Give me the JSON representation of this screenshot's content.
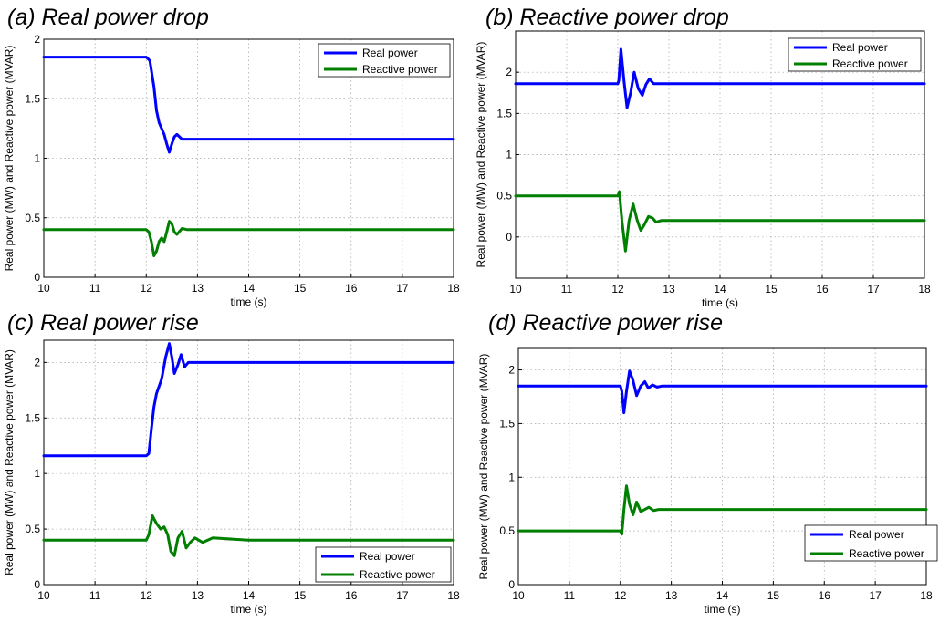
{
  "chart_data": [
    {
      "type": "line",
      "title": "(a) Real power drop",
      "xlabel": "time (s)",
      "ylabel": "Real power (MW) and Reactive power (MVAR)",
      "xlim": [
        10,
        18
      ],
      "ylim": [
        0,
        2
      ],
      "xticks": [
        "10",
        "11",
        "12",
        "13",
        "14",
        "15",
        "16",
        "17",
        "18"
      ],
      "yticks": [
        "0",
        "0.5",
        "1",
        "1.5",
        "2"
      ],
      "grid": true,
      "legend_position": "top-right",
      "series": [
        {
          "name": "Real power",
          "color": "#0000ff",
          "x": [
            10,
            11,
            12,
            12.07,
            12.15,
            12.2,
            12.25,
            12.3,
            12.35,
            12.4,
            12.45,
            12.5,
            12.55,
            12.6,
            12.7,
            12.8,
            13,
            14,
            15,
            16,
            17,
            18
          ],
          "y": [
            1.85,
            1.85,
            1.85,
            1.82,
            1.6,
            1.4,
            1.3,
            1.25,
            1.2,
            1.12,
            1.05,
            1.12,
            1.18,
            1.2,
            1.16,
            1.16,
            1.16,
            1.16,
            1.16,
            1.16,
            1.16,
            1.16
          ]
        },
        {
          "name": "Reactive power",
          "color": "#007f00",
          "x": [
            10,
            11,
            12,
            12.05,
            12.1,
            12.15,
            12.2,
            12.25,
            12.3,
            12.35,
            12.4,
            12.45,
            12.5,
            12.55,
            12.6,
            12.7,
            12.8,
            13,
            14,
            15,
            16,
            17,
            18
          ],
          "y": [
            0.4,
            0.4,
            0.4,
            0.38,
            0.3,
            0.18,
            0.22,
            0.3,
            0.33,
            0.3,
            0.38,
            0.47,
            0.45,
            0.38,
            0.36,
            0.41,
            0.4,
            0.4,
            0.4,
            0.4,
            0.4,
            0.4,
            0.4
          ]
        }
      ]
    },
    {
      "type": "line",
      "title": "(b) Reactive power drop",
      "xlabel": "time (s)",
      "ylabel": "Real power (MW) and Reactive power (MVAR)",
      "xlim": [
        10,
        18
      ],
      "ylim": [
        -0.5,
        2.5
      ],
      "xticks": [
        "10",
        "11",
        "12",
        "13",
        "14",
        "15",
        "16",
        "17",
        "18"
      ],
      "yticks": [
        "0",
        "0.5",
        "1",
        "1.5",
        "2"
      ],
      "grid": true,
      "legend_position": "top-right",
      "series": [
        {
          "name": "Real power",
          "color": "#0000ff",
          "x": [
            10,
            11,
            12,
            12.02,
            12.06,
            12.12,
            12.18,
            12.25,
            12.32,
            12.4,
            12.48,
            12.55,
            12.62,
            12.7,
            12.8,
            13,
            14,
            15,
            16,
            17,
            18
          ],
          "y": [
            1.86,
            1.86,
            1.86,
            1.9,
            2.28,
            1.9,
            1.57,
            1.75,
            2.0,
            1.8,
            1.72,
            1.85,
            1.92,
            1.86,
            1.86,
            1.86,
            1.86,
            1.86,
            1.86,
            1.86,
            1.86
          ]
        },
        {
          "name": "Reactive power",
          "color": "#007f00",
          "x": [
            10,
            11,
            12,
            12.03,
            12.08,
            12.15,
            12.22,
            12.3,
            12.38,
            12.45,
            12.52,
            12.6,
            12.68,
            12.75,
            12.85,
            13,
            14,
            15,
            16,
            17,
            18
          ],
          "y": [
            0.5,
            0.5,
            0.5,
            0.55,
            0.2,
            -0.17,
            0.2,
            0.4,
            0.2,
            0.08,
            0.15,
            0.25,
            0.23,
            0.18,
            0.2,
            0.2,
            0.2,
            0.2,
            0.2,
            0.2,
            0.2
          ]
        }
      ]
    },
    {
      "type": "line",
      "title": "(c) Real power rise",
      "xlabel": "time (s)",
      "ylabel": "Real power (MW) and Reactive power (MVAR)",
      "xlim": [
        10,
        18
      ],
      "ylim": [
        0,
        2.2
      ],
      "xticks": [
        "10",
        "11",
        "12",
        "13",
        "14",
        "15",
        "16",
        "17",
        "18"
      ],
      "yticks": [
        "0",
        "0.5",
        "1",
        "1.5",
        "2"
      ],
      "grid": true,
      "legend_position": "bottom-right",
      "series": [
        {
          "name": "Real power",
          "color": "#0000ff",
          "x": [
            10,
            11,
            12,
            12.05,
            12.1,
            12.15,
            12.2,
            12.3,
            12.38,
            12.45,
            12.5,
            12.55,
            12.62,
            12.68,
            12.75,
            12.82,
            12.9,
            13,
            14,
            15,
            16,
            17,
            18
          ],
          "y": [
            1.16,
            1.16,
            1.16,
            1.18,
            1.4,
            1.6,
            1.72,
            1.85,
            2.05,
            2.17,
            2.05,
            1.9,
            1.98,
            2.07,
            1.96,
            2.0,
            2.0,
            2.0,
            2.0,
            2.0,
            2.0,
            2.0,
            2.0
          ]
        },
        {
          "name": "Reactive power",
          "color": "#007f00",
          "x": [
            10,
            11,
            12,
            12.05,
            12.12,
            12.2,
            12.28,
            12.35,
            12.42,
            12.48,
            12.55,
            12.62,
            12.7,
            12.78,
            12.86,
            12.95,
            13.1,
            13.3,
            14,
            15,
            16,
            17,
            18
          ],
          "y": [
            0.4,
            0.4,
            0.4,
            0.45,
            0.62,
            0.55,
            0.5,
            0.52,
            0.45,
            0.3,
            0.26,
            0.42,
            0.48,
            0.33,
            0.38,
            0.42,
            0.38,
            0.42,
            0.4,
            0.4,
            0.4,
            0.4,
            0.4
          ]
        }
      ]
    },
    {
      "type": "line",
      "title": "(d) Reactive power rise",
      "xlabel": "time (s)",
      "ylabel": "Real power (MW) and Reactive power (MVAR)",
      "xlim": [
        10,
        18
      ],
      "ylim": [
        0,
        2.2
      ],
      "xticks": [
        "10",
        "11",
        "12",
        "13",
        "14",
        "15",
        "16",
        "17",
        "18"
      ],
      "yticks": [
        "0",
        "0.5",
        "1",
        "1.5",
        "2"
      ],
      "grid": true,
      "legend_position": "bottom-right",
      "series": [
        {
          "name": "Real power",
          "color": "#0000ff",
          "x": [
            10,
            11,
            12,
            12.03,
            12.07,
            12.12,
            12.18,
            12.25,
            12.32,
            12.4,
            12.48,
            12.55,
            12.63,
            12.72,
            12.82,
            13,
            14,
            15,
            16,
            17,
            18
          ],
          "y": [
            1.85,
            1.85,
            1.85,
            1.8,
            1.6,
            1.8,
            1.99,
            1.9,
            1.76,
            1.85,
            1.89,
            1.83,
            1.86,
            1.84,
            1.85,
            1.85,
            1.85,
            1.85,
            1.85,
            1.85,
            1.85
          ]
        },
        {
          "name": "Reactive power",
          "color": "#007f00",
          "x": [
            10,
            11,
            12,
            12.03,
            12.07,
            12.12,
            12.18,
            12.25,
            12.32,
            12.4,
            12.48,
            12.56,
            12.65,
            12.75,
            12.85,
            13,
            14,
            15,
            16,
            17,
            18
          ],
          "y": [
            0.5,
            0.5,
            0.5,
            0.47,
            0.7,
            0.92,
            0.75,
            0.65,
            0.77,
            0.68,
            0.7,
            0.72,
            0.69,
            0.7,
            0.7,
            0.7,
            0.7,
            0.7,
            0.7,
            0.7,
            0.7
          ]
        }
      ]
    }
  ]
}
